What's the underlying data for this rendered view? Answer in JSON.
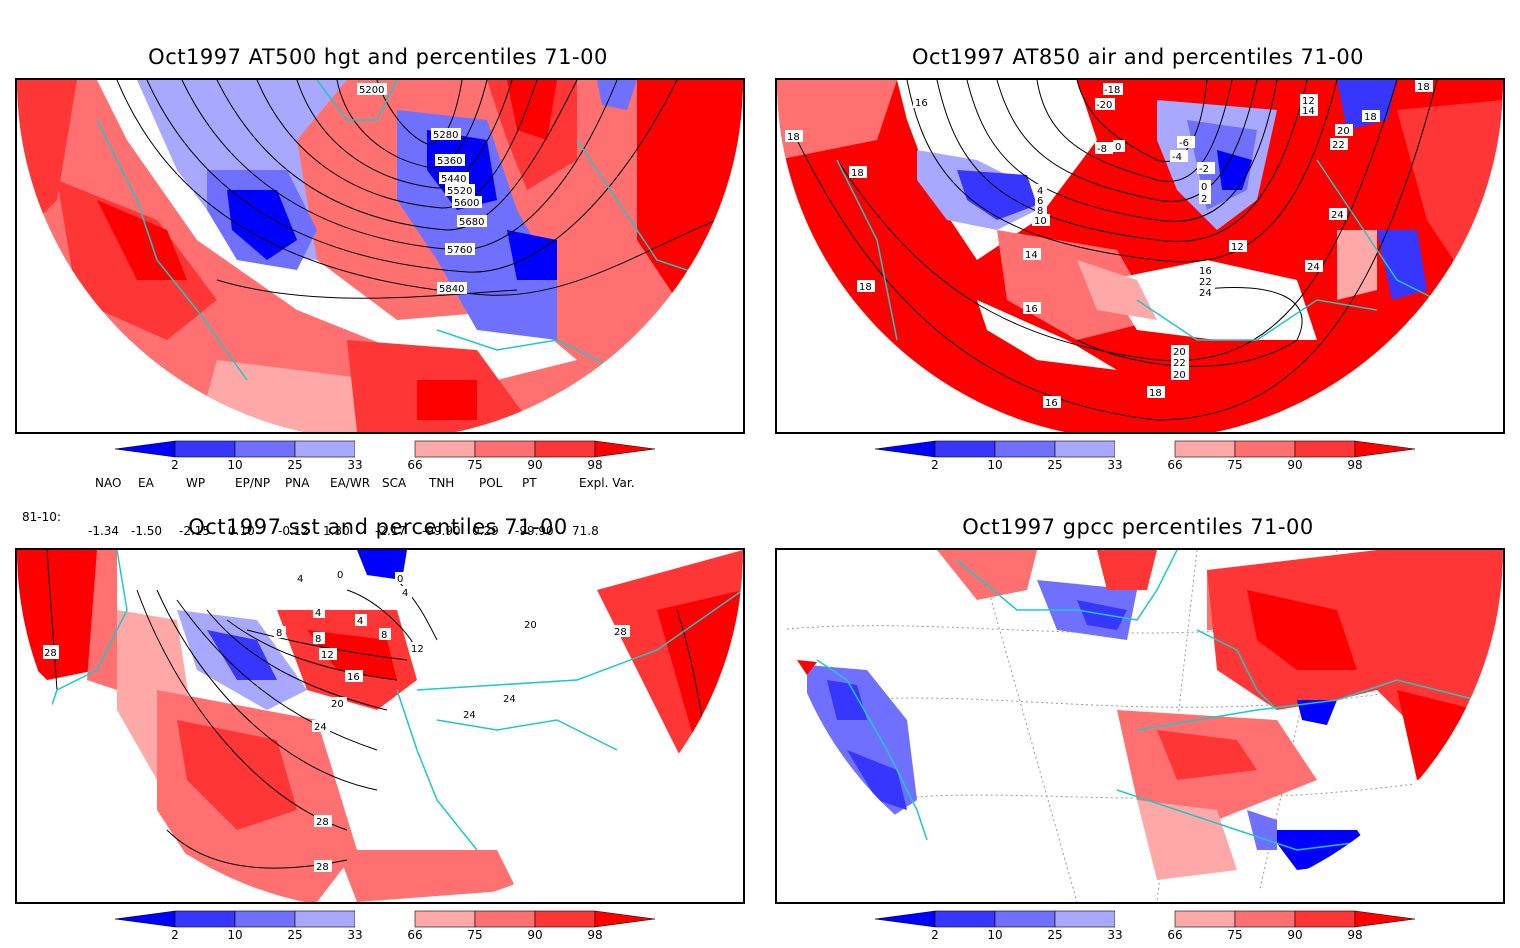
{
  "colors": {
    "below_2": "#0000ff",
    "p2_10": "#3636ff",
    "p10_25": "#7070ff",
    "p25_33": "#a8a8ff",
    "p33_66": "#ffffff",
    "p66_75": "#ffa8a8",
    "p75_90": "#ff7070",
    "p90_98": "#ff3636",
    "above_98": "#ff0000",
    "coast": "#1ec8c8",
    "contour": "#000000"
  },
  "chart_data": [
    {
      "type": "heatmap",
      "title": "Oct1997 AT500 hgt and percentiles 71-00",
      "colorbar_ticks": [
        "2",
        "10",
        "25",
        "33",
        "66",
        "75",
        "90",
        "98"
      ],
      "contour_labels": [
        "5200",
        "5280",
        "5360",
        "5440",
        "5520",
        "5600",
        "5680",
        "5760",
        "5840"
      ],
      "indices": {
        "headers": [
          "NAO",
          "EA",
          "WP",
          "EP/NP",
          "PNA",
          "EA/WR",
          "SCA",
          "TNH",
          "POL",
          "PT",
          "Expl. Var."
        ],
        "row_label": "81-10:",
        "values": [
          "-1.34",
          "-1.50",
          "-2.15",
          "0.10",
          "-0.12",
          "1.30",
          "-2.17",
          "-99.90",
          "0.29",
          "-99.90",
          "71.8"
        ]
      }
    },
    {
      "type": "heatmap",
      "title": "Oct1997 AT850 air and percentiles 71-00",
      "colorbar_ticks": [
        "2",
        "10",
        "25",
        "33",
        "66",
        "75",
        "90",
        "98"
      ],
      "contour_labels": [
        "-18",
        "-20",
        "-8",
        "0",
        "-6",
        "-4",
        "-2",
        "0",
        "2",
        "4",
        "6",
        "8",
        "10",
        "12",
        "14",
        "16",
        "18",
        "18",
        "16",
        "16",
        "18",
        "20",
        "22",
        "24",
        "24",
        "22",
        "20",
        "18",
        "12",
        "14",
        "18",
        "20",
        "22",
        "24",
        "18",
        "16"
      ]
    },
    {
      "type": "heatmap",
      "title": "Oct1997 sst and percentiles 71-00",
      "colorbar_ticks": [
        "2",
        "10",
        "25",
        "33",
        "66",
        "75",
        "90",
        "98"
      ],
      "contour_labels": [
        "28",
        "4",
        "0",
        "0",
        "4",
        "4",
        "4",
        "8",
        "8",
        "8",
        "12",
        "12",
        "16",
        "20",
        "24",
        "24",
        "24",
        "28",
        "28",
        "28",
        "20"
      ]
    },
    {
      "type": "heatmap",
      "title": "Oct1997 gpcc percentiles 71-00",
      "colorbar_ticks": [
        "2",
        "10",
        "25",
        "33",
        "66",
        "75",
        "90",
        "98"
      ],
      "contour_labels": []
    }
  ]
}
